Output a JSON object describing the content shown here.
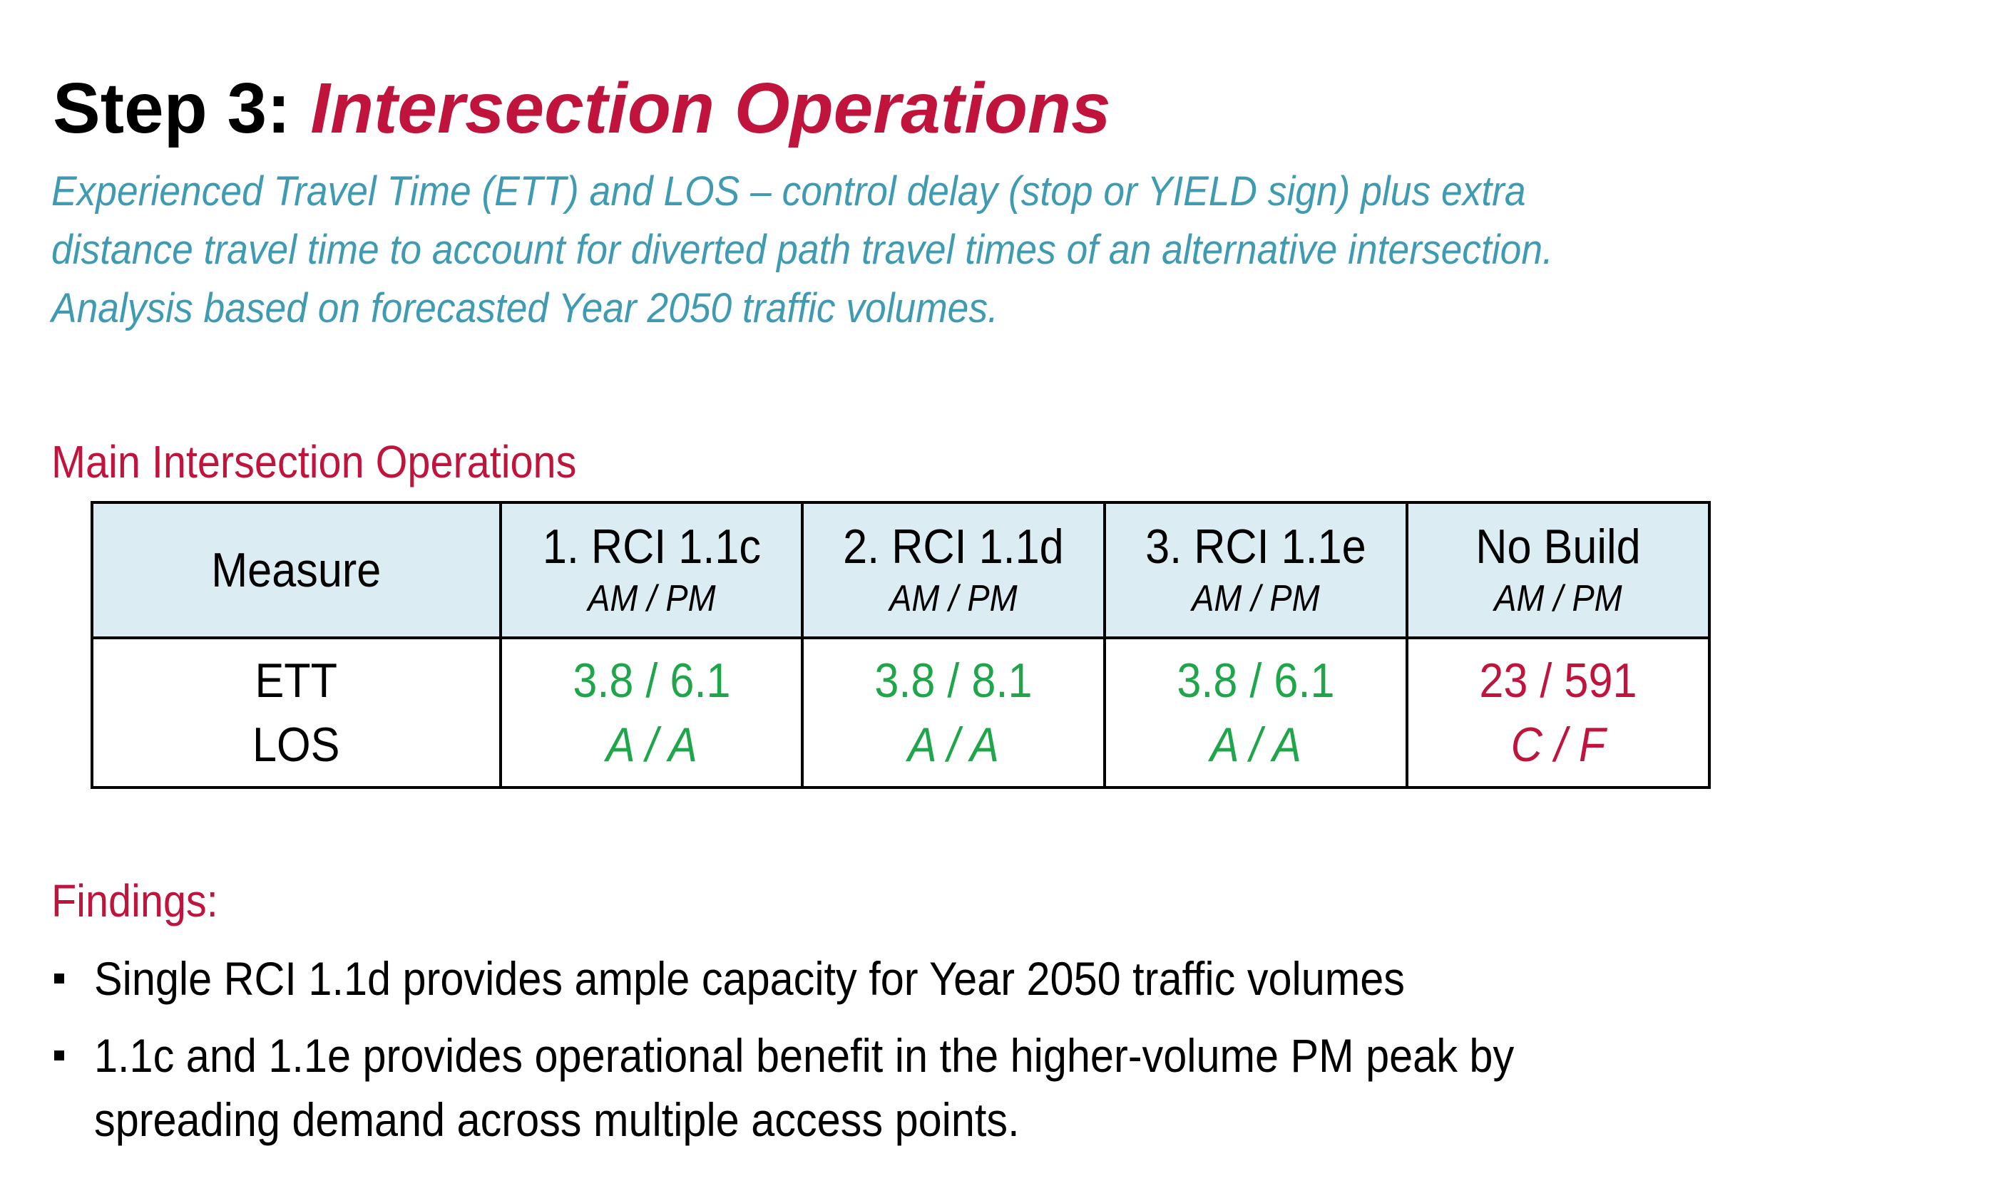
{
  "title": {
    "prefix": "Step 3: ",
    "emphasis": "Intersection Operations"
  },
  "subtitle": "Experienced Travel Time (ETT) and LOS – control delay (stop or YIELD sign) plus extra distance travel time to account for diverted path travel times of an alternative intersection.  Analysis based on forecasted Year 2050 traffic volumes.",
  "section_heading": "Main Intersection Operations",
  "table": {
    "header": {
      "measure": "Measure",
      "columns": [
        {
          "label": "1. RCI 1.1c",
          "sub": "AM / PM"
        },
        {
          "label": "2. RCI 1.1d",
          "sub": "AM / PM"
        },
        {
          "label": "3. RCI 1.1e",
          "sub": "AM / PM"
        },
        {
          "label": "No Build",
          "sub": "AM / PM"
        }
      ]
    },
    "row": {
      "measure_line1": "ETT",
      "measure_line2": "LOS",
      "cells": [
        {
          "ett": "3.8 / 6.1",
          "los": "A / A",
          "status": "good"
        },
        {
          "ett": "3.8 / 8.1",
          "los": "A / A",
          "status": "good"
        },
        {
          "ett": "3.8 / 6.1",
          "los": "A / A",
          "status": "good"
        },
        {
          "ett": "23 / 591",
          "los": "C / F",
          "status": "bad"
        }
      ]
    }
  },
  "findings": {
    "heading": "Findings:",
    "items": [
      "Single RCI 1.1d provides ample capacity for Year 2050 traffic volumes",
      "1.1c and 1.1e provides operational benefit in the higher-volume PM peak by spreading demand across multiple access points."
    ]
  },
  "colors": {
    "accent_red": "#c0143c",
    "subtitle_teal": "#3f9bb2",
    "good_green": "#1fa54a",
    "table_header_bg": "#dbecf3"
  }
}
